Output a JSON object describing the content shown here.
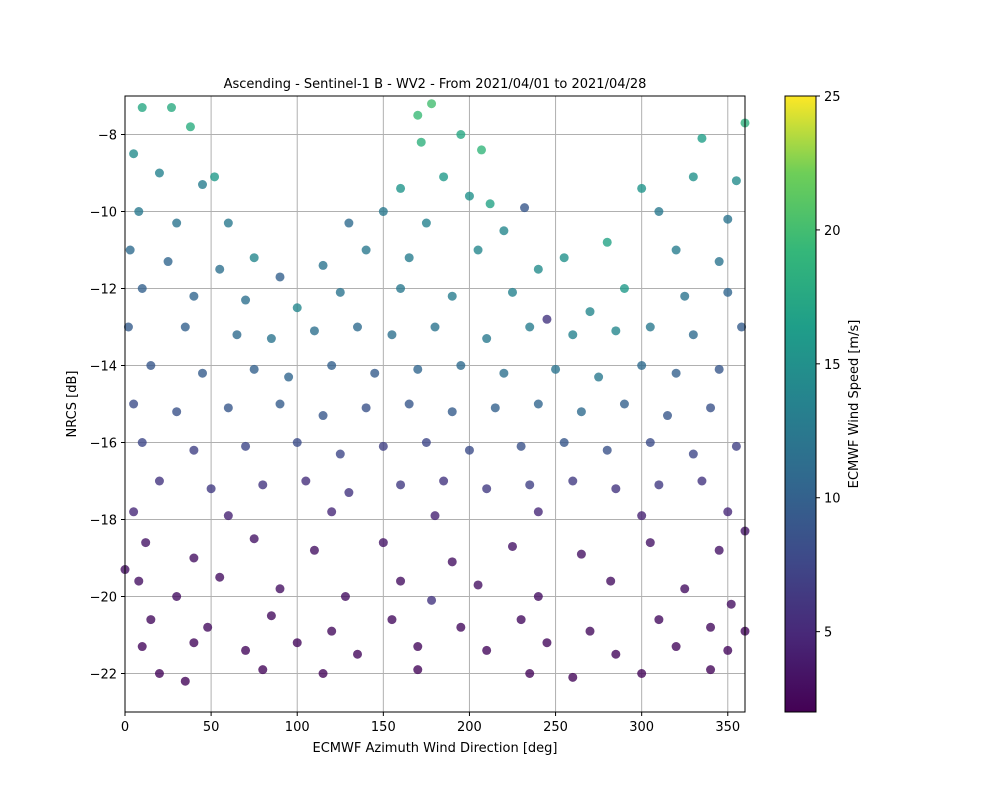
{
  "chart_data": {
    "type": "scatter",
    "title": "Ascending - Sentinel-1 B - WV2 - From 2021/04/01 to 2021/04/28",
    "xlabel": "ECMWF Azimuth Wind Direction [deg]",
    "ylabel": "NRCS [dB]",
    "xlim": [
      0,
      360
    ],
    "ylim": [
      -23,
      -7
    ],
    "x_ticks": [
      0,
      50,
      100,
      150,
      200,
      250,
      300,
      350
    ],
    "y_ticks": [
      -22,
      -20,
      -18,
      -16,
      -14,
      -12,
      -10,
      -8
    ],
    "grid": true,
    "colorbar": {
      "label": "ECMWF Wind Speed [m/s]",
      "range": [
        2,
        25
      ],
      "ticks": [
        5,
        10,
        15,
        20,
        25
      ],
      "colormap": "viridis"
    },
    "series": [
      {
        "points": [
          [
            10,
            -7.3,
            17.5
          ],
          [
            27,
            -7.3,
            17.8
          ],
          [
            38,
            -7.8,
            18.0
          ],
          [
            170,
            -7.5,
            19.5
          ],
          [
            178,
            -7.2,
            20.0
          ],
          [
            172,
            -8.2,
            18.5
          ],
          [
            195,
            -8.0,
            17.5
          ],
          [
            207,
            -8.4,
            19.0
          ],
          [
            360,
            -7.7,
            18.5
          ],
          [
            335,
            -8.1,
            16.5
          ],
          [
            5,
            -8.5,
            14.5
          ],
          [
            20,
            -9.0,
            13.5
          ],
          [
            45,
            -9.3,
            13.0
          ],
          [
            52,
            -9.1,
            16.0
          ],
          [
            300,
            -9.4,
            15.5
          ],
          [
            330,
            -9.1,
            15.0
          ],
          [
            355,
            -9.2,
            14.5
          ],
          [
            160,
            -9.4,
            15.5
          ],
          [
            185,
            -9.1,
            16.0
          ],
          [
            200,
            -9.6,
            15.0
          ],
          [
            212,
            -9.8,
            17.0
          ],
          [
            232,
            -9.9,
            9.0
          ],
          [
            8,
            -10.0,
            12.5
          ],
          [
            30,
            -10.3,
            12.0
          ],
          [
            60,
            -10.3,
            12.5
          ],
          [
            130,
            -10.3,
            11.0
          ],
          [
            150,
            -10.0,
            12.5
          ],
          [
            175,
            -10.3,
            13.5
          ],
          [
            220,
            -10.5,
            14.0
          ],
          [
            310,
            -10.0,
            12.5
          ],
          [
            350,
            -10.2,
            12.0
          ],
          [
            3,
            -11.0,
            11.0
          ],
          [
            25,
            -11.3,
            10.5
          ],
          [
            55,
            -11.5,
            11.5
          ],
          [
            75,
            -11.2,
            14.0
          ],
          [
            90,
            -11.7,
            10.0
          ],
          [
            115,
            -11.4,
            12.0
          ],
          [
            140,
            -11.0,
            12.5
          ],
          [
            165,
            -11.2,
            13.0
          ],
          [
            205,
            -11.0,
            14.0
          ],
          [
            240,
            -11.5,
            14.5
          ],
          [
            255,
            -11.2,
            15.0
          ],
          [
            280,
            -10.8,
            17.0
          ],
          [
            320,
            -11.0,
            13.0
          ],
          [
            345,
            -11.3,
            12.0
          ],
          [
            10,
            -12.0,
            10.0
          ],
          [
            40,
            -12.2,
            10.5
          ],
          [
            70,
            -12.3,
            11.5
          ],
          [
            100,
            -12.5,
            14.0
          ],
          [
            125,
            -12.1,
            12.0
          ],
          [
            160,
            -12.0,
            12.5
          ],
          [
            190,
            -12.2,
            13.0
          ],
          [
            225,
            -12.1,
            13.5
          ],
          [
            245,
            -12.8,
            6.0
          ],
          [
            270,
            -12.6,
            14.0
          ],
          [
            290,
            -12.0,
            16.0
          ],
          [
            325,
            -12.2,
            12.0
          ],
          [
            350,
            -12.1,
            10.5
          ],
          [
            2,
            -13.0,
            9.5
          ],
          [
            35,
            -13.0,
            10.0
          ],
          [
            65,
            -13.2,
            11.0
          ],
          [
            85,
            -13.3,
            12.0
          ],
          [
            110,
            -13.1,
            11.5
          ],
          [
            135,
            -13.0,
            11.0
          ],
          [
            155,
            -13.2,
            11.5
          ],
          [
            180,
            -13.0,
            12.0
          ],
          [
            210,
            -13.3,
            12.5
          ],
          [
            235,
            -13.0,
            13.0
          ],
          [
            260,
            -13.2,
            13.5
          ],
          [
            285,
            -13.1,
            14.0
          ],
          [
            305,
            -13.0,
            12.5
          ],
          [
            330,
            -13.2,
            11.0
          ],
          [
            358,
            -13.0,
            9.5
          ],
          [
            15,
            -14.0,
            9.0
          ],
          [
            45,
            -14.2,
            9.5
          ],
          [
            75,
            -14.1,
            10.0
          ],
          [
            95,
            -14.3,
            10.5
          ],
          [
            120,
            -14.0,
            10.0
          ],
          [
            145,
            -14.2,
            9.5
          ],
          [
            170,
            -14.1,
            10.5
          ],
          [
            195,
            -14.0,
            11.0
          ],
          [
            220,
            -14.2,
            11.5
          ],
          [
            250,
            -14.1,
            12.0
          ],
          [
            275,
            -14.3,
            12.5
          ],
          [
            300,
            -14.0,
            11.0
          ],
          [
            320,
            -14.2,
            10.0
          ],
          [
            345,
            -14.1,
            9.0
          ],
          [
            5,
            -15.0,
            8.0
          ],
          [
            30,
            -15.2,
            8.5
          ],
          [
            60,
            -15.1,
            9.0
          ],
          [
            90,
            -15.0,
            9.5
          ],
          [
            115,
            -15.3,
            9.0
          ],
          [
            140,
            -15.1,
            8.5
          ],
          [
            165,
            -15.0,
            9.0
          ],
          [
            190,
            -15.2,
            9.5
          ],
          [
            215,
            -15.1,
            10.0
          ],
          [
            240,
            -15.0,
            10.5
          ],
          [
            265,
            -15.2,
            11.0
          ],
          [
            290,
            -15.0,
            10.0
          ],
          [
            315,
            -15.3,
            9.0
          ],
          [
            340,
            -15.1,
            8.5
          ],
          [
            10,
            -16.0,
            7.5
          ],
          [
            40,
            -16.2,
            7.0
          ],
          [
            70,
            -16.1,
            7.5
          ],
          [
            100,
            -16.0,
            8.0
          ],
          [
            125,
            -16.3,
            7.5
          ],
          [
            150,
            -16.1,
            7.0
          ],
          [
            175,
            -16.0,
            7.5
          ],
          [
            200,
            -16.2,
            8.0
          ],
          [
            230,
            -16.1,
            8.5
          ],
          [
            255,
            -16.0,
            9.0
          ],
          [
            280,
            -16.2,
            8.5
          ],
          [
            305,
            -16.0,
            8.0
          ],
          [
            330,
            -16.3,
            7.5
          ],
          [
            355,
            -16.1,
            7.0
          ],
          [
            20,
            -17.0,
            6.0
          ],
          [
            50,
            -17.2,
            6.5
          ],
          [
            80,
            -17.1,
            6.0
          ],
          [
            105,
            -17.0,
            5.5
          ],
          [
            130,
            -17.3,
            6.0
          ],
          [
            160,
            -17.1,
            6.5
          ],
          [
            185,
            -17.0,
            6.0
          ],
          [
            210,
            -17.2,
            6.5
          ],
          [
            235,
            -17.1,
            7.0
          ],
          [
            260,
            -17.0,
            6.5
          ],
          [
            285,
            -17.2,
            6.0
          ],
          [
            310,
            -17.1,
            6.5
          ],
          [
            335,
            -17.0,
            6.0
          ],
          [
            5,
            -17.8,
            5.0
          ],
          [
            60,
            -17.9,
            4.5
          ],
          [
            120,
            -17.8,
            5.0
          ],
          [
            180,
            -17.9,
            4.5
          ],
          [
            240,
            -17.8,
            5.0
          ],
          [
            300,
            -17.9,
            4.5
          ],
          [
            350,
            -17.8,
            5.0
          ],
          [
            12,
            -18.6,
            3.5
          ],
          [
            40,
            -19.0,
            3.2
          ],
          [
            75,
            -18.5,
            3.5
          ],
          [
            110,
            -18.8,
            3.3
          ],
          [
            150,
            -18.6,
            3.6
          ],
          [
            190,
            -19.1,
            3.2
          ],
          [
            225,
            -18.7,
            3.4
          ],
          [
            265,
            -18.9,
            3.3
          ],
          [
            305,
            -18.6,
            3.5
          ],
          [
            345,
            -18.8,
            3.4
          ],
          [
            8,
            -19.6,
            3.2
          ],
          [
            30,
            -20.0,
            3.0
          ],
          [
            55,
            -19.5,
            3.1
          ],
          [
            90,
            -19.8,
            3.2
          ],
          [
            128,
            -20.0,
            3.0
          ],
          [
            160,
            -19.6,
            3.1
          ],
          [
            178,
            -20.1,
            6.0
          ],
          [
            205,
            -19.7,
            3.2
          ],
          [
            240,
            -20.0,
            3.0
          ],
          [
            282,
            -19.6,
            3.1
          ],
          [
            325,
            -19.8,
            3.0
          ],
          [
            352,
            -20.2,
            3.1
          ],
          [
            15,
            -20.6,
            2.8
          ],
          [
            48,
            -20.8,
            2.9
          ],
          [
            85,
            -20.5,
            2.8
          ],
          [
            120,
            -20.9,
            2.8
          ],
          [
            155,
            -20.6,
            2.9
          ],
          [
            195,
            -20.8,
            2.8
          ],
          [
            230,
            -20.6,
            2.9
          ],
          [
            270,
            -20.9,
            2.8
          ],
          [
            310,
            -20.6,
            2.9
          ],
          [
            340,
            -20.8,
            2.8
          ],
          [
            10,
            -21.3,
            2.6
          ],
          [
            40,
            -21.2,
            2.7
          ],
          [
            70,
            -21.4,
            2.6
          ],
          [
            100,
            -21.2,
            2.7
          ],
          [
            135,
            -21.5,
            2.6
          ],
          [
            170,
            -21.3,
            2.7
          ],
          [
            210,
            -21.4,
            2.6
          ],
          [
            245,
            -21.2,
            2.7
          ],
          [
            285,
            -21.5,
            2.6
          ],
          [
            320,
            -21.3,
            2.7
          ],
          [
            350,
            -21.4,
            2.6
          ],
          [
            20,
            -22.0,
            2.5
          ],
          [
            35,
            -22.2,
            2.5
          ],
          [
            80,
            -21.9,
            2.5
          ],
          [
            115,
            -22.0,
            2.5
          ],
          [
            170,
            -21.9,
            2.5
          ],
          [
            235,
            -22.0,
            2.5
          ],
          [
            260,
            -22.1,
            2.5
          ],
          [
            300,
            -22.0,
            2.5
          ],
          [
            340,
            -21.9,
            2.5
          ],
          [
            360,
            -20.9,
            2.6
          ],
          [
            0,
            -19.3,
            3.0
          ],
          [
            360,
            -18.3,
            3.6
          ]
        ]
      }
    ]
  }
}
